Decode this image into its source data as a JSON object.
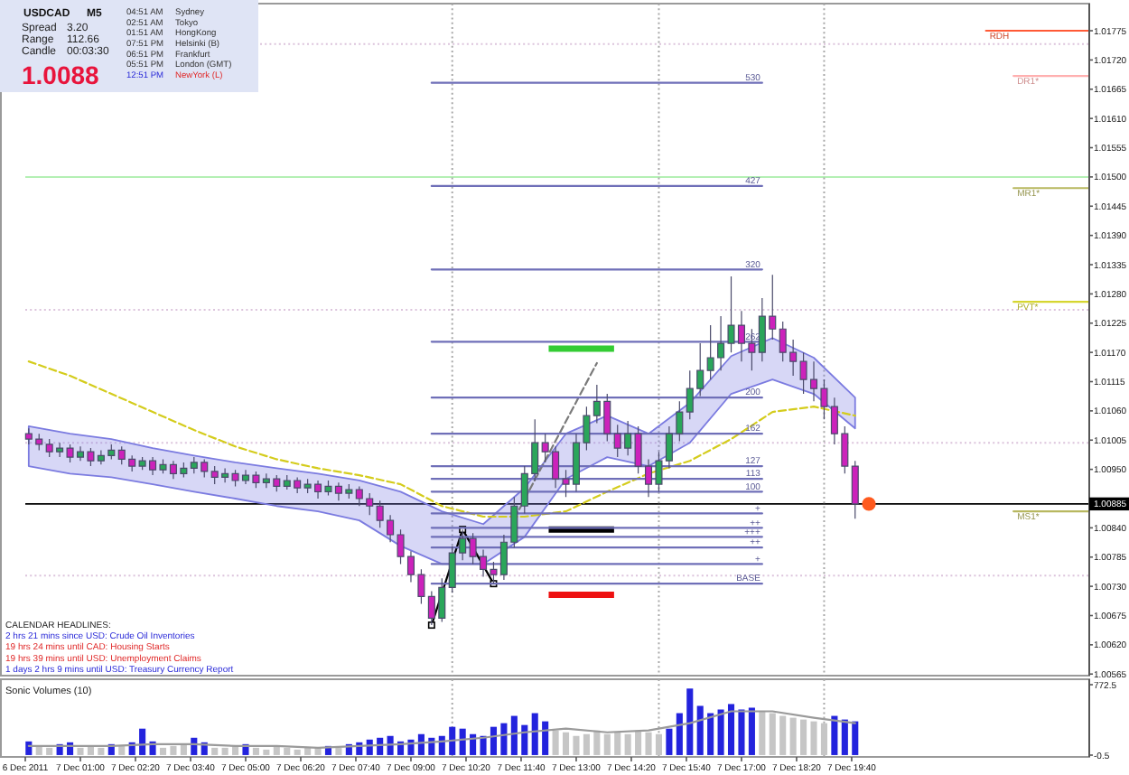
{
  "chart_data": [
    {
      "type": "candlestick",
      "x": [
        "2011-12-06T23:45",
        "2011-12-07T00:00",
        "2011-12-07T00:15",
        "2011-12-07T00:30",
        "2011-12-07T00:45",
        "2011-12-07T01:00",
        "2011-12-07T01:15",
        "2011-12-07T01:30",
        "2011-12-07T01:45",
        "2011-12-07T02:00",
        "2011-12-07T02:15",
        "2011-12-07T02:30",
        "2011-12-07T02:45",
        "2011-12-07T03:00",
        "2011-12-07T03:15",
        "2011-12-07T03:30",
        "2011-12-07T03:45",
        "2011-12-07T04:00",
        "2011-12-07T04:15",
        "2011-12-07T04:30",
        "2011-12-07T04:45",
        "2011-12-07T05:00",
        "2011-12-07T05:15",
        "2011-12-07T05:30",
        "2011-12-07T05:45",
        "2011-12-07T06:00",
        "2011-12-07T06:15",
        "2011-12-07T06:30",
        "2011-12-07T06:45",
        "2011-12-07T07:00",
        "2011-12-07T07:15",
        "2011-12-07T07:30",
        "2011-12-07T07:45",
        "2011-12-07T08:00",
        "2011-12-07T08:15",
        "2011-12-07T08:30",
        "2011-12-07T08:45",
        "2011-12-07T09:00",
        "2011-12-07T09:15",
        "2011-12-07T09:30",
        "2011-12-07T09:45",
        "2011-12-07T10:00",
        "2011-12-07T10:15",
        "2011-12-07T10:30",
        "2011-12-07T10:45",
        "2011-12-07T11:00",
        "2011-12-07T11:15",
        "2011-12-07T11:30",
        "2011-12-07T11:45",
        "2011-12-07T12:00",
        "2011-12-07T12:15",
        "2011-12-07T12:30",
        "2011-12-07T12:45",
        "2011-12-07T13:00",
        "2011-12-07T13:15",
        "2011-12-07T13:30",
        "2011-12-07T13:45",
        "2011-12-07T14:00",
        "2011-12-07T14:15",
        "2011-12-07T14:30",
        "2011-12-07T14:45",
        "2011-12-07T15:00",
        "2011-12-07T15:15",
        "2011-12-07T15:30",
        "2011-12-07T15:45",
        "2011-12-07T16:00",
        "2011-12-07T16:15",
        "2011-12-07T16:30",
        "2011-12-07T16:45",
        "2011-12-07T17:00",
        "2011-12-07T17:15",
        "2011-12-07T17:30",
        "2011-12-07T17:45",
        "2011-12-07T18:00",
        "2011-12-07T18:15",
        "2011-12-07T18:30",
        "2011-12-07T18:45",
        "2011-12-07T19:00",
        "2011-12-07T19:15",
        "2011-12-07T19:30",
        "2011-12-07T19:45"
      ],
      "ohlc": [
        [
          1.01017,
          1.01027,
          1.00997,
          1.01007
        ],
        [
          1.01007,
          1.01017,
          1.00986,
          1.00997
        ],
        [
          1.00997,
          1.01007,
          1.00973,
          1.00983
        ],
        [
          1.00983,
          1.01,
          1.00973,
          1.0099
        ],
        [
          1.0099,
          1.00997,
          1.00963,
          1.00973
        ],
        [
          1.00973,
          1.00993,
          1.00966,
          1.00983
        ],
        [
          1.00983,
          1.0099,
          1.00956,
          1.00966
        ],
        [
          1.00966,
          1.00986,
          1.00959,
          1.00976
        ],
        [
          1.00976,
          1.00997,
          1.00969,
          1.00986
        ],
        [
          1.00986,
          1.00993,
          1.00959,
          1.00969
        ],
        [
          1.00969,
          1.00976,
          1.00946,
          1.00956
        ],
        [
          1.00956,
          1.00973,
          1.00949,
          1.00966
        ],
        [
          1.00966,
          1.00973,
          1.00939,
          1.00949
        ],
        [
          1.00949,
          1.00969,
          1.00942,
          1.00959
        ],
        [
          1.00959,
          1.00966,
          1.00932,
          1.00942
        ],
        [
          1.00942,
          1.00963,
          1.00935,
          1.00952
        ],
        [
          1.00952,
          1.00973,
          1.00942,
          1.00963
        ],
        [
          1.00963,
          1.00969,
          1.00935,
          1.00946
        ],
        [
          1.00946,
          1.00956,
          1.00922,
          1.00935
        ],
        [
          1.00935,
          1.00952,
          1.00925,
          1.00942
        ],
        [
          1.00942,
          1.00949,
          1.00918,
          1.00929
        ],
        [
          1.00929,
          1.00949,
          1.00922,
          1.00939
        ],
        [
          1.00939,
          1.00946,
          1.00915,
          1.00925
        ],
        [
          1.00925,
          1.00942,
          1.00915,
          1.00932
        ],
        [
          1.00932,
          1.00939,
          1.00908,
          1.00918
        ],
        [
          1.00918,
          1.00939,
          1.00912,
          1.00929
        ],
        [
          1.00929,
          1.00935,
          1.00905,
          1.00915
        ],
        [
          1.00915,
          1.00932,
          1.00905,
          1.00922
        ],
        [
          1.00922,
          1.00929,
          1.00895,
          1.00908
        ],
        [
          1.00908,
          1.00929,
          1.00901,
          1.00918
        ],
        [
          1.00918,
          1.00925,
          1.00891,
          1.00905
        ],
        [
          1.00905,
          1.00922,
          1.00895,
          1.00912
        ],
        [
          1.00912,
          1.00918,
          1.00881,
          1.00895
        ],
        [
          1.00895,
          1.00905,
          1.00864,
          1.00881
        ],
        [
          1.00881,
          1.00891,
          1.0084,
          1.00854
        ],
        [
          1.00854,
          1.00864,
          1.00813,
          1.00827
        ],
        [
          1.00827,
          1.00837,
          1.00772,
          1.00786
        ],
        [
          1.00786,
          1.00796,
          1.00738,
          1.00752
        ],
        [
          1.00752,
          1.00762,
          1.00697,
          1.00711
        ],
        [
          1.00711,
          1.00721,
          1.00657,
          1.0067
        ],
        [
          1.0067,
          1.00745,
          1.00663,
          1.00728
        ],
        [
          1.00728,
          1.00806,
          1.00718,
          1.00793
        ],
        [
          1.00793,
          1.00837,
          1.00779,
          1.0082
        ],
        [
          1.0082,
          1.0083,
          1.00772,
          1.00786
        ],
        [
          1.00786,
          1.00799,
          1.00748,
          1.00762
        ],
        [
          1.00762,
          1.00776,
          1.00735,
          1.00752
        ],
        [
          1.00752,
          1.00827,
          1.00742,
          1.00813
        ],
        [
          1.00813,
          1.00898,
          1.00803,
          1.00881
        ],
        [
          1.00881,
          1.00956,
          1.00867,
          1.00942
        ],
        [
          1.00942,
          1.01044,
          1.00929,
          1.01
        ],
        [
          1.01,
          1.01017,
          1.00963,
          1.00983
        ],
        [
          1.00983,
          1.00993,
          1.00915,
          1.00932
        ],
        [
          1.00932,
          1.00949,
          1.00898,
          1.00922
        ],
        [
          1.00922,
          1.01017,
          1.00908,
          1.01
        ],
        [
          1.01,
          1.01068,
          1.00986,
          1.01051
        ],
        [
          1.01051,
          1.01109,
          1.01037,
          1.01078
        ],
        [
          1.01078,
          1.01092,
          1.01003,
          1.01017
        ],
        [
          1.01017,
          1.01034,
          1.00973,
          1.0099
        ],
        [
          1.0099,
          1.01041,
          1.00976,
          1.01017
        ],
        [
          1.01017,
          1.01031,
          1.00942,
          1.00956
        ],
        [
          1.00956,
          1.00969,
          1.00898,
          1.00922
        ],
        [
          1.00922,
          1.00983,
          1.00908,
          1.00966
        ],
        [
          1.00966,
          1.01031,
          1.00952,
          1.01017
        ],
        [
          1.01017,
          1.01078,
          1.01003,
          1.01058
        ],
        [
          1.01058,
          1.01136,
          1.01044,
          1.01102
        ],
        [
          1.01102,
          1.01187,
          1.01088,
          1.01136
        ],
        [
          1.01136,
          1.01221,
          1.01119,
          1.0116
        ],
        [
          1.0116,
          1.01238,
          1.01136,
          1.01187
        ],
        [
          1.01187,
          1.01313,
          1.0117,
          1.01221
        ],
        [
          1.01221,
          1.01248,
          1.01153,
          1.01187
        ],
        [
          1.01187,
          1.01214,
          1.01136,
          1.0117
        ],
        [
          1.0117,
          1.01272,
          1.01153,
          1.01238
        ],
        [
          1.01238,
          1.01316,
          1.01194,
          1.01214
        ],
        [
          1.01214,
          1.01228,
          1.01153,
          1.0117
        ],
        [
          1.0117,
          1.01194,
          1.01126,
          1.01153
        ],
        [
          1.01153,
          1.0117,
          1.01092,
          1.01119
        ],
        [
          1.01119,
          1.01153,
          1.01078,
          1.01102
        ],
        [
          1.01102,
          1.01119,
          1.01044,
          1.01068
        ],
        [
          1.01068,
          1.01085,
          1.00997,
          1.01017
        ],
        [
          1.01017,
          1.01031,
          1.00942,
          1.00956
        ],
        [
          1.00956,
          1.00966,
          1.00857,
          1.00885
        ]
      ],
      "color": "#4b4b6b",
      "colors": [
        "#cc22bb",
        "#cc22bb",
        "#cc22bb",
        "#2aa65a",
        "#cc22bb",
        "#2aa65a",
        "#cc22bb",
        "#2aa65a",
        "#2aa65a",
        "#cc22bb",
        "#cc22bb",
        "#2aa65a",
        "#cc22bb",
        "#2aa65a",
        "#cc22bb",
        "#2aa65a",
        "#2aa65a",
        "#cc22bb",
        "#cc22bb",
        "#2aa65a",
        "#cc22bb",
        "#2aa65a",
        "#cc22bb",
        "#2aa65a",
        "#cc22bb",
        "#2aa65a",
        "#cc22bb",
        "#2aa65a",
        "#cc22bb",
        "#2aa65a",
        "#cc22bb",
        "#2aa65a",
        "#cc22bb",
        "#cc22bb",
        "#cc22bb",
        "#cc22bb",
        "#cc22bb",
        "#cc22bb",
        "#cc22bb",
        "#cc22bb",
        "#2aa65a",
        "#2aa65a",
        "#2aa65a",
        "#cc22bb",
        "#cc22bb",
        "#cc22bb",
        "#2aa65a",
        "#2aa65a",
        "#2aa65a",
        "#2aa65a",
        "#cc22bb",
        "#cc22bb",
        "#cc22bb",
        "#2aa65a",
        "#2aa65a",
        "#2aa65a",
        "#cc22bb",
        "#cc22bb",
        "#2aa65a",
        "#cc22bb",
        "#cc22bb",
        "#2aa65a",
        "#2aa65a",
        "#2aa65a",
        "#2aa65a",
        "#2aa65a",
        "#2aa65a",
        "#2aa65a",
        "#2aa65a",
        "#cc22bb",
        "#cc22bb",
        "#2aa65a",
        "#cc22bb",
        "#cc22bb",
        "#cc22bb",
        "#cc22bb",
        "#cc22bb",
        "#cc22bb",
        "#cc22bb",
        "#cc22bb",
        "#cc22bb"
      ],
      "xlim": [
        "2011-12-06T23:40",
        "2011-12-08T01:25"
      ],
      "ylim": [
        1.00562,
        1.01826
      ],
      "yticks": [
        1.01775,
        {
          "value": 1.0172,
          "label": "1.01720"
        },
        1.01665,
        {
          "value": 1.0161,
          "label": "1.01610"
        },
        1.01555,
        {
          "value": 1.015,
          "label": "1.01500"
        },
        1.01445,
        {
          "value": 1.0139,
          "label": "1.01390"
        },
        1.01335,
        {
          "value": 1.0128,
          "label": "1.01280"
        },
        1.01225,
        {
          "value": 1.0117,
          "label": "1.01170"
        },
        1.01115,
        {
          "value": 1.0106,
          "label": "1.01060"
        },
        1.01005,
        {
          "value": 1.0095,
          "label": "1.00950"
        },
        {
          "value": 1.0084,
          "label": "1.00840"
        },
        1.00785,
        {
          "value": 1.0073,
          "label": "1.00730"
        },
        1.00675,
        {
          "value": 1.0062,
          "label": "1.00620"
        },
        1.00565
      ],
      "tick_labels": "y",
      "series": [
        {
          "type": "line",
          "color": "#7b7be0",
          "x": [
            "2011-12-06T23:45",
            "2011-12-07T00:45",
            "2011-12-07T01:45",
            "2011-12-07T02:45",
            "2011-12-07T03:45",
            "2011-12-07T04:45",
            "2011-12-07T05:45",
            "2011-12-07T06:45",
            "2011-12-07T07:45",
            "2011-12-07T08:45",
            "2011-12-07T09:45",
            "2011-12-07T10:45",
            "2011-12-07T11:45",
            "2011-12-07T12:45",
            "2011-12-07T13:45",
            "2011-12-07T14:45",
            "2011-12-07T15:45",
            "2011-12-07T16:45",
            "2011-12-07T17:45",
            "2011-12-07T18:45",
            "2011-12-07T19:45"
          ],
          "values": [
            null,
            null,
            null,
            null,
            null,
            null,
            null,
            null,
            null,
            null,
            null,
            null,
            null,
            null,
            null,
            null,
            null,
            null,
            null,
            null,
            null
          ],
          "lower": [
            1.00956,
            1.00942,
            1.00935,
            1.00922,
            1.00908,
            1.00895,
            1.00881,
            1.00871,
            1.00854,
            1.00806,
            1.00772,
            1.00772,
            1.00823,
            1.00932,
            1.00973,
            1.00956,
            1.01,
            1.01092,
            1.01119,
            1.01092,
            1.01027
          ],
          "upper": [
            1.01031,
            1.01017,
            1.01007,
            1.0099,
            1.00976,
            1.00963,
            1.00952,
            1.00942,
            1.00929,
            1.00908,
            1.00871,
            1.00847,
            1.00915,
            1.01017,
            1.01051,
            1.01017,
            1.01075,
            1.01163,
            1.01197,
            1.0116,
            1.01085
          ]
        },
        {
          "type": "line",
          "color": "#d4cc1c",
          "line_style": "dashed",
          "x": [
            "2011-12-06T23:45",
            "2011-12-07T00:45",
            "2011-12-07T01:45",
            "2011-12-07T02:45",
            "2011-12-07T03:45",
            "2011-12-07T04:45",
            "2011-12-07T05:45",
            "2011-12-07T06:45",
            "2011-12-07T07:45",
            "2011-12-07T08:45",
            "2011-12-07T09:45",
            "2011-12-07T10:45",
            "2011-12-07T11:45",
            "2011-12-07T12:45",
            "2011-12-07T13:45",
            "2011-12-07T14:45",
            "2011-12-07T15:45",
            "2011-12-07T16:45",
            "2011-12-07T17:45",
            "2011-12-07T18:45",
            "2011-12-07T19:45"
          ],
          "values": [
            1.01153,
            1.01126,
            1.01092,
            1.01058,
            1.01024,
            1.00993,
            1.00969,
            1.00952,
            1.00939,
            1.00922,
            1.00881,
            1.00861,
            1.00861,
            1.00871,
            1.00908,
            1.00942,
            1.00966,
            1.01007,
            1.01058,
            1.01068,
            1.01051
          ]
        },
        {
          "type": "line",
          "color": "#000000",
          "marker": "square",
          "x": [
            "2011-12-07T09:30",
            "2011-12-07T10:15",
            "2011-12-07T11:00"
          ],
          "values": [
            1.00657,
            1.00837,
            1.00735
          ]
        },
        {
          "type": "line",
          "color": "#7a7a7a",
          "line_style": "dashed",
          "x": [
            "2011-12-07T11:30",
            "2011-12-07T13:30"
          ],
          "values": [
            1.00857,
            1.0115
          ]
        },
        {
          "type": "line",
          "color": "#33cc33",
          "x": [
            "2011-12-07T12:20",
            "2011-12-07T13:55"
          ],
          "values": [
            1.01177,
            1.01177
          ]
        },
        {
          "type": "line",
          "color": "#000000",
          "x": [
            "2011-12-07T12:20",
            "2011-12-07T13:55"
          ],
          "values": [
            1.00837,
            1.00837
          ]
        },
        {
          "type": "line",
          "color": "#ee1111",
          "x": [
            "2011-12-07T12:20",
            "2011-12-07T13:55"
          ],
          "values": [
            1.00714,
            1.00714
          ]
        },
        {
          "type": "line",
          "name": "530",
          "color": "#6f6fb8",
          "x": [
            "2011-12-07T09:30",
            "2011-12-07T17:30"
          ],
          "values": [
            1.01677,
            1.01677
          ]
        },
        {
          "type": "line",
          "name": "427",
          "color": "#6f6fb8",
          "x": [
            "2011-12-07T09:30",
            "2011-12-07T17:30"
          ],
          "values": [
            1.01483,
            1.01483
          ]
        },
        {
          "type": "line",
          "name": "320",
          "color": "#6f6fb8",
          "x": [
            "2011-12-07T09:30",
            "2011-12-07T17:30"
          ],
          "values": [
            1.01326,
            1.01326
          ]
        },
        {
          "type": "line",
          "name": "262",
          "color": "#6f6fb8",
          "x": [
            "2011-12-07T09:30",
            "2011-12-07T17:30"
          ],
          "values": [
            1.0119,
            1.0119
          ]
        },
        {
          "type": "line",
          "name": "200",
          "color": "#6f6fb8",
          "x": [
            "2011-12-07T09:30",
            "2011-12-07T17:30"
          ],
          "values": [
            1.01085,
            1.01085
          ]
        },
        {
          "type": "line",
          "name": "162",
          "color": "#6f6fb8",
          "x": [
            "2011-12-07T09:30",
            "2011-12-07T17:30"
          ],
          "values": [
            1.01017,
            1.01017
          ]
        },
        {
          "type": "line",
          "name": "127",
          "color": "#6f6fb8",
          "x": [
            "2011-12-07T09:30",
            "2011-12-07T17:30"
          ],
          "values": [
            1.00956,
            1.00956
          ]
        },
        {
          "type": "line",
          "name": "113",
          "color": "#6f6fb8",
          "x": [
            "2011-12-07T09:30",
            "2011-12-07T17:30"
          ],
          "values": [
            1.00932,
            1.00932
          ]
        },
        {
          "type": "line",
          "name": "100",
          "color": "#6f6fb8",
          "x": [
            "2011-12-07T09:30",
            "2011-12-07T17:30"
          ],
          "values": [
            1.00908,
            1.00908
          ]
        },
        {
          "type": "line",
          "name": "+",
          "color": "#6f6fb8",
          "x": [
            "2011-12-07T09:30",
            "2011-12-07T17:30"
          ],
          "values": [
            1.00867,
            1.00867
          ]
        },
        {
          "type": "line",
          "name": "++",
          "color": "#6f6fb8",
          "x": [
            "2011-12-07T09:30",
            "2011-12-07T17:30"
          ],
          "values": [
            1.0084,
            1.0084
          ]
        },
        {
          "type": "line",
          "name": "+++",
          "color": "#6f6fb8",
          "x": [
            "2011-12-07T09:30",
            "2011-12-07T17:30"
          ],
          "values": [
            1.00823,
            1.00823
          ]
        },
        {
          "type": "line",
          "name": "++",
          "color": "#6f6fb8",
          "x": [
            "2011-12-07T09:30",
            "2011-12-07T17:30"
          ],
          "values": [
            1.00803,
            1.00803
          ]
        },
        {
          "type": "line",
          "name": "+",
          "color": "#6f6fb8",
          "x": [
            "2011-12-07T09:30",
            "2011-12-07T17:30"
          ],
          "values": [
            1.00772,
            1.00772
          ]
        },
        {
          "type": "line",
          "name": "BASE",
          "color": "#6f6fb8",
          "x": [
            "2011-12-07T09:30",
            "2011-12-07T17:30"
          ],
          "values": [
            1.00735,
            1.00735
          ]
        },
        {
          "type": "line",
          "name": "RDH",
          "color": "#ff5a36",
          "x": [
            "2011-12-07T22:55",
            "2011-12-08T01:25"
          ],
          "values": [
            1.01775,
            1.01775
          ]
        },
        {
          "type": "line",
          "name": "DR1*",
          "color": "#ffb0b0",
          "x": [
            "2011-12-07T23:35",
            "2011-12-08T01:25"
          ],
          "values": [
            1.0169,
            1.0169
          ]
        },
        {
          "type": "line",
          "name": "MR1*",
          "color": "#b8b860",
          "x": [
            "2011-12-07T23:35",
            "2011-12-08T01:25"
          ],
          "values": [
            1.01479,
            1.01479
          ]
        },
        {
          "type": "line",
          "name": "PVT*",
          "color": "#d6d630",
          "x": [
            "2011-12-07T23:35",
            "2011-12-08T01:25"
          ],
          "values": [
            1.01265,
            1.01265
          ]
        },
        {
          "type": "line",
          "name": "MS1*",
          "color": "#b8b860",
          "x": [
            "2011-12-07T23:35",
            "2011-12-08T01:25"
          ],
          "values": [
            1.00871,
            1.00871
          ]
        },
        {
          "type": "scatter",
          "color": "#ff5a1e",
          "marker": "circle",
          "x": [
            "2011-12-07T20:05"
          ],
          "values": [
            1.00885
          ]
        }
      ],
      "ref_lines": [
        {
          "axis": "y",
          "value": 1.00885,
          "label": "1.00885",
          "color": "#000000"
        },
        {
          "axis": "y",
          "value": 1.015,
          "color": "#b4f0b4"
        },
        {
          "axis": "y",
          "value": 1.0175,
          "color": "#dcc4dc",
          "line_style": "dotted"
        },
        {
          "axis": "y",
          "value": 1.0125,
          "color": "#dcc4dc",
          "line_style": "dotted"
        },
        {
          "axis": "y",
          "value": 1.01,
          "color": "#dcc4dc",
          "line_style": "dotted"
        },
        {
          "axis": "y",
          "value": 1.0075,
          "color": "#dcc4dc",
          "line_style": "dotted"
        },
        {
          "axis": "x",
          "value": "2011-12-07T10:00",
          "color": "#a8a8a8",
          "line_style": "dotted"
        },
        {
          "axis": "x",
          "value": "2011-12-07T15:00",
          "color": "#a8a8a8",
          "line_style": "dotted"
        },
        {
          "axis": "x",
          "value": "2011-12-07T19:00",
          "color": "#a8a8a8",
          "line_style": "dotted"
        }
      ],
      "annotations": [
        "USDCAD",
        "M5",
        "Spread",
        "3.20",
        "Range",
        "112.66",
        "Candle",
        "00:03:30",
        "1.0088",
        "04:51 AM",
        "Sydney",
        "02:51 AM",
        "Tokyo",
        "01:51 AM",
        "HongKong",
        "07:51 PM",
        "Helsinki (B)",
        "06:51 PM",
        "Frankfurt",
        "05:51 PM",
        "London (GMT)",
        "12:51 PM",
        "NewYork (L)",
        "CALENDAR HEADLINES:",
        "2 hrs 21 mins since USD: Crude Oil Inventories",
        "19 hrs 24 mins until CAD: Housing Starts",
        "19 hrs 39 mins until USD: Unemployment Claims",
        "1 days 2 hrs 9 mins until USD: Treasury Currency Report"
      ]
    },
    {
      "type": "bar",
      "title": "Sonic Volumes (10)",
      "x": [
        "2011-12-06T23:45",
        "2011-12-07T00:00",
        "2011-12-07T00:15",
        "2011-12-07T00:30",
        "2011-12-07T00:45",
        "2011-12-07T01:00",
        "2011-12-07T01:15",
        "2011-12-07T01:30",
        "2011-12-07T01:45",
        "2011-12-07T02:00",
        "2011-12-07T02:15",
        "2011-12-07T02:30",
        "2011-12-07T02:45",
        "2011-12-07T03:00",
        "2011-12-07T03:15",
        "2011-12-07T03:30",
        "2011-12-07T03:45",
        "2011-12-07T04:00",
        "2011-12-07T04:15",
        "2011-12-07T04:30",
        "2011-12-07T04:45",
        "2011-12-07T05:00",
        "2011-12-07T05:15",
        "2011-12-07T05:30",
        "2011-12-07T05:45",
        "2011-12-07T06:00",
        "2011-12-07T06:15",
        "2011-12-07T06:30",
        "2011-12-07T06:45",
        "2011-12-07T07:00",
        "2011-12-07T07:15",
        "2011-12-07T07:30",
        "2011-12-07T07:45",
        "2011-12-07T08:00",
        "2011-12-07T08:15",
        "2011-12-07T08:30",
        "2011-12-07T08:45",
        "2011-12-07T09:00",
        "2011-12-07T09:15",
        "2011-12-07T09:30",
        "2011-12-07T09:45",
        "2011-12-07T10:00",
        "2011-12-07T10:15",
        "2011-12-07T10:30",
        "2011-12-07T10:45",
        "2011-12-07T11:00",
        "2011-12-07T11:15",
        "2011-12-07T11:30",
        "2011-12-07T11:45",
        "2011-12-07T12:00",
        "2011-12-07T12:15",
        "2011-12-07T12:30",
        "2011-12-07T12:45",
        "2011-12-07T13:00",
        "2011-12-07T13:15",
        "2011-12-07T13:30",
        "2011-12-07T13:45",
        "2011-12-07T14:00",
        "2011-12-07T14:15",
        "2011-12-07T14:30",
        "2011-12-07T14:45",
        "2011-12-07T15:00",
        "2011-12-07T15:15",
        "2011-12-07T15:30",
        "2011-12-07T15:45",
        "2011-12-07T16:00",
        "2011-12-07T16:15",
        "2011-12-07T16:30",
        "2011-12-07T16:45",
        "2011-12-07T17:00",
        "2011-12-07T17:15",
        "2011-12-07T17:30",
        "2011-12-07T17:45",
        "2011-12-07T18:00",
        "2011-12-07T18:15",
        "2011-12-07T18:30",
        "2011-12-07T18:45",
        "2011-12-07T19:00",
        "2011-12-07T19:15",
        "2011-12-07T19:30",
        "2011-12-07T19:45"
      ],
      "series": [
        {
          "values": [
            150,
            100,
            80,
            120,
            140,
            80,
            100,
            80,
            120,
            100,
            140,
            290,
            150,
            80,
            100,
            120,
            190,
            140,
            80,
            80,
            100,
            120,
            80,
            60,
            100,
            80,
            60,
            80,
            80,
            100,
            80,
            120,
            140,
            170,
            190,
            210,
            150,
            170,
            230,
            190,
            210,
            310,
            290,
            230,
            210,
            310,
            350,
            430,
            330,
            460,
            370,
            270,
            250,
            210,
            230,
            270,
            230,
            250,
            230,
            270,
            250,
            230,
            290,
            460,
            730,
            540,
            460,
            500,
            560,
            500,
            520,
            480,
            460,
            430,
            410,
            390,
            370,
            350,
            430,
            390,
            370
          ],
          "colors": [
            "#2323dd",
            "#c6c6c6",
            "#c6c6c6",
            "#2323dd",
            "#2323dd",
            "#c6c6c6",
            "#c6c6c6",
            "#c6c6c6",
            "#2323dd",
            "#c6c6c6",
            "#2323dd",
            "#2323dd",
            "#2323dd",
            "#c6c6c6",
            "#c6c6c6",
            "#c6c6c6",
            "#2323dd",
            "#2323dd",
            "#c6c6c6",
            "#c6c6c6",
            "#c6c6c6",
            "#2323dd",
            "#c6c6c6",
            "#c6c6c6",
            "#c6c6c6",
            "#c6c6c6",
            "#c6c6c6",
            "#c6c6c6",
            "#c6c6c6",
            "#2323dd",
            "#c6c6c6",
            "#2323dd",
            "#2323dd",
            "#2323dd",
            "#2323dd",
            "#2323dd",
            "#2323dd",
            "#2323dd",
            "#2323dd",
            "#2323dd",
            "#2323dd",
            "#2323dd",
            "#2323dd",
            "#2323dd",
            "#2323dd",
            "#2323dd",
            "#2323dd",
            "#2323dd",
            "#2323dd",
            "#2323dd",
            "#2323dd",
            "#c6c6c6",
            "#c6c6c6",
            "#c6c6c6",
            "#c6c6c6",
            "#c6c6c6",
            "#c6c6c6",
            "#c6c6c6",
            "#c6c6c6",
            "#c6c6c6",
            "#c6c6c6",
            "#c6c6c6",
            "#2323dd",
            "#2323dd",
            "#2323dd",
            "#2323dd",
            "#2323dd",
            "#2323dd",
            "#2323dd",
            "#2323dd",
            "#2323dd",
            "#c6c6c6",
            "#c6c6c6",
            "#c6c6c6",
            "#c6c6c6",
            "#c6c6c6",
            "#c6c6c6",
            "#c6c6c6",
            "#2323dd",
            "#2323dd",
            "#2323dd"
          ]
        },
        {
          "type": "line",
          "color": "#9a9a9a",
          "x": [
            "2011-12-06T23:45",
            "2011-12-07T00:45",
            "2011-12-07T01:45",
            "2011-12-07T02:45",
            "2011-12-07T03:45",
            "2011-12-07T04:45",
            "2011-12-07T05:45",
            "2011-12-07T06:45",
            "2011-12-07T07:45",
            "2011-12-07T08:45",
            "2011-12-07T09:45",
            "2011-12-07T10:45",
            "2011-12-07T11:45",
            "2011-12-07T12:45",
            "2011-12-07T13:45",
            "2011-12-07T14:45",
            "2011-12-07T15:45",
            "2011-12-07T16:45",
            "2011-12-07T17:45",
            "2011-12-07T18:45",
            "2011-12-07T19:45"
          ],
          "values": [
            100,
            100,
            100,
            120,
            120,
            100,
            100,
            80,
            100,
            120,
            150,
            190,
            250,
            290,
            250,
            270,
            350,
            480,
            480,
            410,
            350
          ]
        }
      ],
      "xlim": [
        "2011-12-06T23:40",
        "2011-12-08T01:25"
      ],
      "ylim": [
        -0.5,
        772.5
      ],
      "yticks": [
        772.5,
        -0.5
      ],
      "xticks": [
        {
          "value": "2011-12-06T23:40",
          "label": "6 Dec 2011"
        },
        {
          "value": "2011-12-07T01:00",
          "label": "7 Dec 01:00"
        },
        {
          "value": "2011-12-07T02:20",
          "label": "7 Dec 02:20"
        },
        {
          "value": "2011-12-07T03:40",
          "label": "7 Dec 03:40"
        },
        {
          "value": "2011-12-07T05:00",
          "label": "7 Dec 05:00"
        },
        {
          "value": "2011-12-07T06:20",
          "label": "7 Dec 06:20"
        },
        {
          "value": "2011-12-07T07:40",
          "label": "7 Dec 07:40"
        },
        {
          "value": "2011-12-07T09:00",
          "label": "7 Dec 09:00"
        },
        {
          "value": "2011-12-07T10:20",
          "label": "7 Dec 10:20"
        },
        {
          "value": "2011-12-07T11:40",
          "label": "7 Dec 11:40"
        },
        {
          "value": "2011-12-07T13:00",
          "label": "7 Dec 13:00"
        },
        {
          "value": "2011-12-07T14:20",
          "label": "7 Dec 14:20"
        },
        {
          "value": "2011-12-07T15:40",
          "label": "7 Dec 15:40"
        },
        {
          "value": "2011-12-07T17:00",
          "label": "7 Dec 17:00"
        },
        {
          "value": "2011-12-07T18:20",
          "label": "7 Dec 18:20"
        },
        {
          "value": "2011-12-07T19:40",
          "label": "7 Dec 19:40"
        }
      ],
      "ref_lines": [
        {
          "axis": "x",
          "value": "2011-12-07T10:00",
          "color": "#a8a8a8",
          "line_style": "dotted"
        },
        {
          "axis": "x",
          "value": "2011-12-07T15:00",
          "color": "#a8a8a8",
          "line_style": "dotted"
        },
        {
          "axis": "x",
          "value": "2011-12-07T19:00",
          "color": "#a8a8a8",
          "line_style": "dotted"
        }
      ]
    }
  ]
}
